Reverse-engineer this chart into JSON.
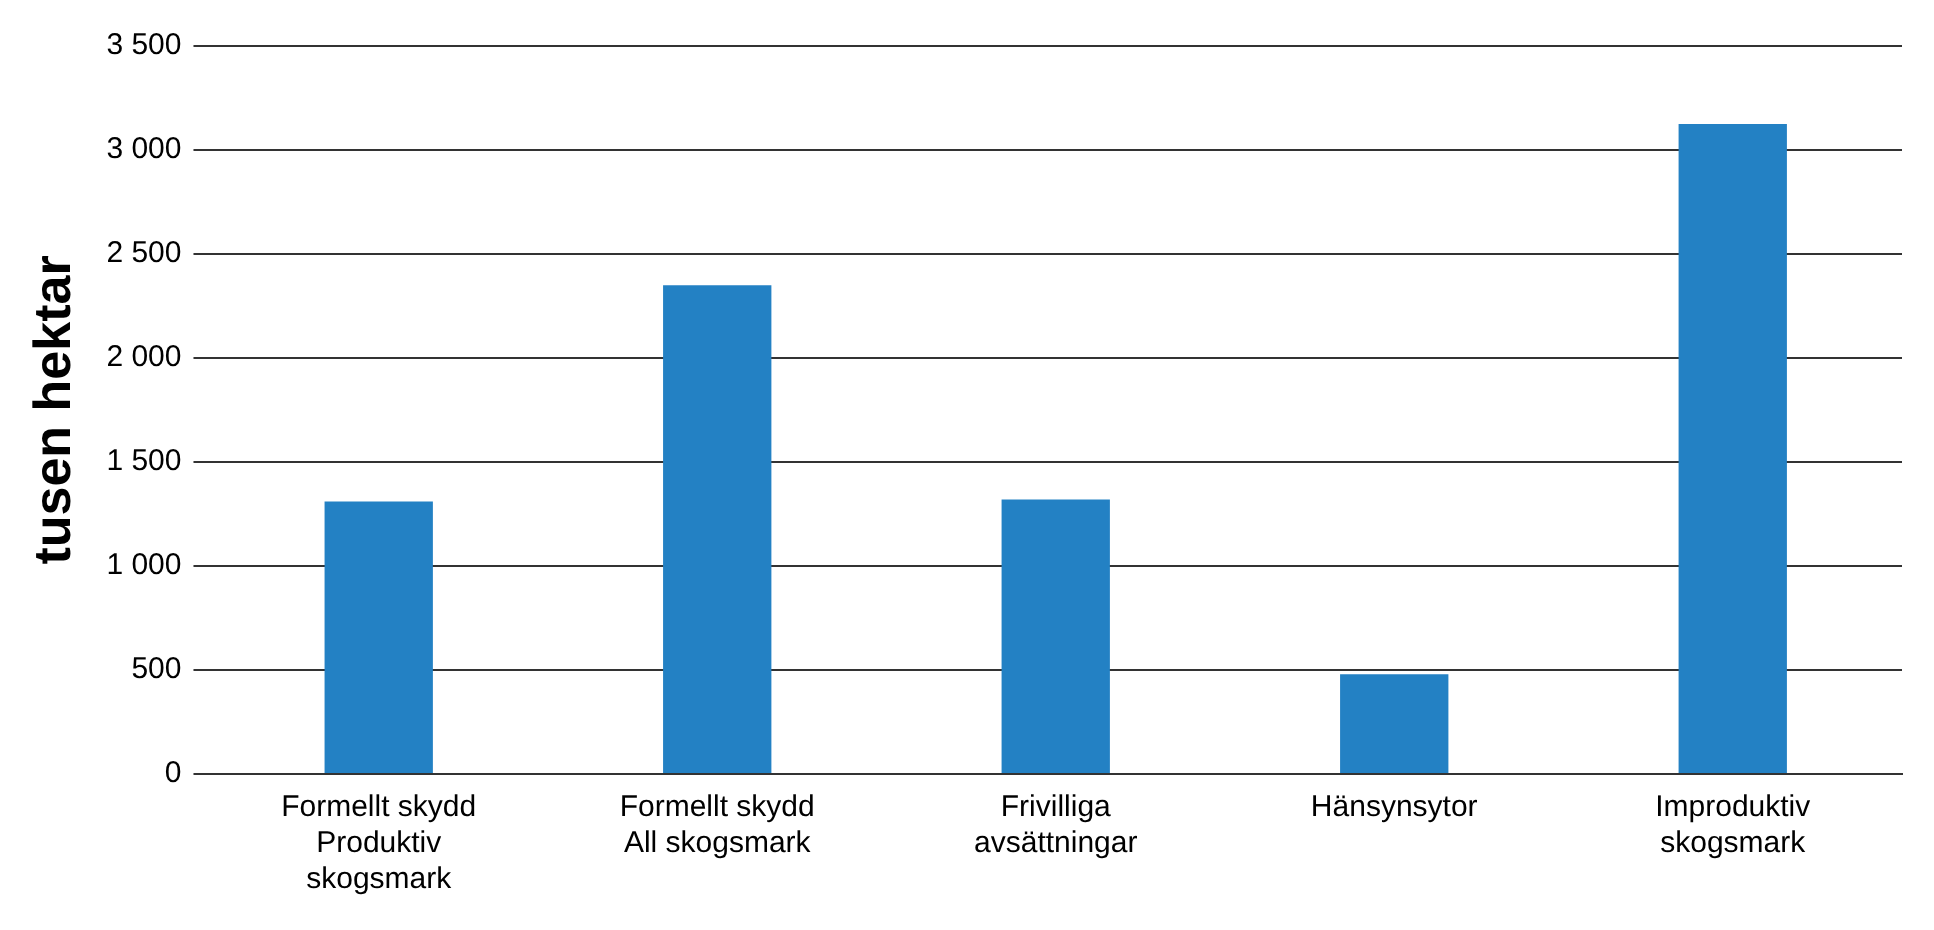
{
  "chart_data": {
    "type": "bar",
    "ylabel": "tusen hektar",
    "categories": [
      "Formellt skydd\nProduktiv\nskogsmark",
      "Formellt skydd\nAll skogsmark",
      "Frivilliga\navsättningar",
      "Hänsynsytor",
      "Improduktiv\nskogsmark"
    ],
    "values": [
      1310,
      2350,
      1320,
      480,
      3125
    ],
    "color": "#2381c4",
    "ylim": [
      0,
      3500
    ],
    "yticks": [
      0,
      500,
      {
        "value": 1000,
        "label": "1 000"
      },
      {
        "value": 1500,
        "label": "1 500"
      },
      {
        "value": 2000,
        "label": "2 000"
      },
      {
        "value": 2500,
        "label": "2 500"
      },
      {
        "value": 3000,
        "label": "3 000"
      },
      {
        "value": 3500,
        "label": "3 500"
      }
    ],
    "grid": "y",
    "legend": false
  }
}
